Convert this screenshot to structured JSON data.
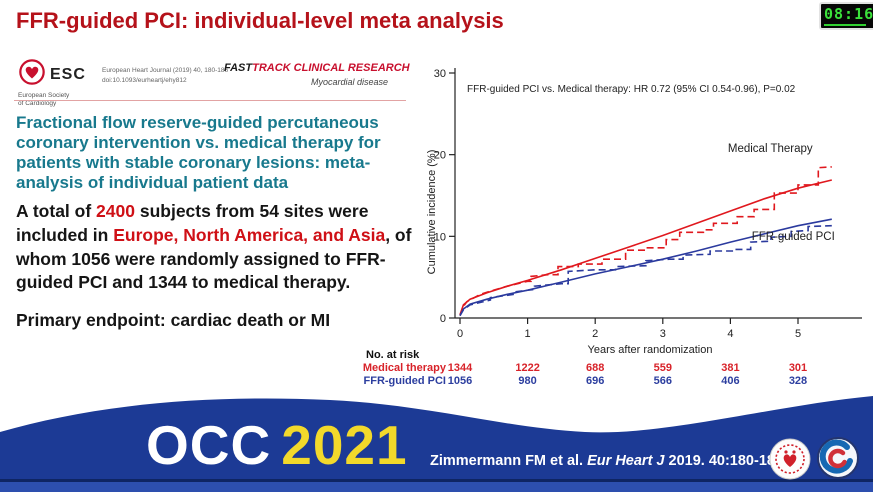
{
  "slide": {
    "title": "FFR-guided PCI: individual-level meta analysis",
    "clock_time": "08:16"
  },
  "journal_header": {
    "esc_acronym": "ESC",
    "esc_name_line1": "European Society",
    "esc_name_line2": "of Cardiology",
    "citation_line1": "European Heart Journal (2019) 40, 180-186",
    "citation_line2": "doi:10.1093/eurheartj/ehy812",
    "category_fast": "FAST",
    "category_track": "TRACK CLINICAL RESEARCH",
    "subcategory": "Myocardial disease"
  },
  "paper_title": "Fractional flow reserve-guided percutaneous coronary intervention vs. medical therapy for patients with stable coronary lesions: meta-analysis of individual patient data",
  "summary": {
    "seg1": "A total of ",
    "seg2_red": "2400",
    "seg3": " subjects from 54 sites were included in ",
    "seg4_red": "Europe, North America, and Asia",
    "seg5": ", of whom 1056 were randomly assigned to FFR-guided PCI and 1344 to medical therapy.",
    "endpoint": "Primary endpoint: cardiac death or MI"
  },
  "chart_data": {
    "type": "line",
    "annotation": "FFR-guided PCI vs. Medical therapy: HR 0.72 (95% CI 0.54-0.96), P=0.02",
    "xlabel": "Years after randomization",
    "ylabel": "Cumulative incidence (%)",
    "xlim": [
      0,
      5.5
    ],
    "ylim": [
      0,
      30
    ],
    "xticks": [
      0,
      1,
      2,
      3,
      4,
      5
    ],
    "yticks": [
      0,
      10,
      20,
      30
    ],
    "grid": false,
    "legend_position": "labels-on-chart",
    "series": [
      {
        "name": "Medical Therapy (model)",
        "color": "#e0181e",
        "style": "solid",
        "x": [
          0,
          0.05,
          0.15,
          0.4,
          0.7,
          1.0,
          1.5,
          2.0,
          2.5,
          3.0,
          3.5,
          4.0,
          4.5,
          5.0,
          5.5
        ],
        "y": [
          0.4,
          1.6,
          2.3,
          3.1,
          3.9,
          4.6,
          5.9,
          7.3,
          8.7,
          10.1,
          11.6,
          13.1,
          14.6,
          15.9,
          16.9
        ]
      },
      {
        "name": "Medical Therapy (KM)",
        "color": "#e0181e",
        "style": "dashed",
        "x": [
          0,
          0.04,
          0.1,
          0.3,
          0.5,
          0.7,
          0.9,
          1.0,
          1.05,
          1.05,
          1.3,
          1.45,
          1.45,
          1.75,
          1.75,
          2.1,
          2.1,
          2.45,
          2.45,
          2.75,
          2.75,
          3.05,
          3.05,
          3.25,
          3.25,
          3.6,
          3.6,
          3.75,
          3.75,
          4.1,
          4.1,
          4.35,
          4.35,
          4.65,
          4.65,
          5.0,
          5.0,
          5.3,
          5.3,
          5.5
        ],
        "y": [
          0.3,
          1.3,
          2.0,
          2.9,
          3.4,
          3.9,
          4.3,
          4.5,
          4.5,
          5.1,
          5.3,
          5.3,
          6.3,
          6.3,
          6.6,
          6.6,
          7.2,
          7.2,
          8.3,
          8.3,
          8.6,
          8.6,
          9.6,
          9.6,
          10.5,
          10.5,
          10.8,
          10.8,
          11.6,
          11.6,
          12.4,
          12.4,
          13.3,
          13.3,
          15.3,
          15.3,
          16.3,
          16.3,
          18.4,
          18.5
        ]
      },
      {
        "name": "FFR-guided PCI (model)",
        "color": "#2b3a9e",
        "style": "solid",
        "x": [
          0,
          0.05,
          0.15,
          0.4,
          0.7,
          1.0,
          1.5,
          2.0,
          2.5,
          3.0,
          3.5,
          4.0,
          4.5,
          5.0,
          5.5
        ],
        "y": [
          0.3,
          1.1,
          1.7,
          2.3,
          2.9,
          3.4,
          4.4,
          5.4,
          6.3,
          7.2,
          8.2,
          9.3,
          10.3,
          11.3,
          12.1
        ]
      },
      {
        "name": "FFR-guided PCI (KM)",
        "color": "#2b3a9e",
        "style": "dashed",
        "x": [
          0,
          0.05,
          0.15,
          0.45,
          0.45,
          0.8,
          0.8,
          1.1,
          1.1,
          1.5,
          1.6,
          1.6,
          2.0,
          2.3,
          2.3,
          2.75,
          2.75,
          3.1,
          3.3,
          3.3,
          3.7,
          3.7,
          4.05,
          4.05,
          4.3,
          4.3,
          4.6,
          4.6,
          4.9,
          4.9,
          5.15,
          5.15,
          5.5
        ],
        "y": [
          0.3,
          1.0,
          1.6,
          2.2,
          2.5,
          2.9,
          3.2,
          3.5,
          3.9,
          4.2,
          4.2,
          5.7,
          5.9,
          5.9,
          6.3,
          6.4,
          7.0,
          7.2,
          7.2,
          7.7,
          7.8,
          8.2,
          8.2,
          8.4,
          8.4,
          9.3,
          9.4,
          9.9,
          10.0,
          10.6,
          10.7,
          11.2,
          11.3
        ]
      }
    ],
    "curve_labels": [
      {
        "text": "Medical Therapy",
        "x": 4.59,
        "y": 20.3,
        "color": "#1a1a1a"
      },
      {
        "text": "FFR-guided PCI",
        "x": 4.93,
        "y": 9.55,
        "color": "#1a1a1a"
      }
    ],
    "risk_table": {
      "header": "No. at risk",
      "rows": [
        {
          "label": "Medical therapy",
          "color": "#d8232a",
          "values": [
            "1344",
            "1222",
            "688",
            "559",
            "381",
            "301"
          ]
        },
        {
          "label": "FFR-guided PCI",
          "color": "#2c3e9f",
          "values": [
            "1056",
            "980",
            "696",
            "566",
            "406",
            "328"
          ]
        }
      ]
    }
  },
  "footer": {
    "conference_name": "OCC",
    "conference_year": "2021",
    "citation_prefix": "Zimmermann FM et al. ",
    "citation_journal": "Eur Heart J",
    "citation_suffix": " 2019. 40:180-186."
  },
  "colors": {
    "title_red": "#b5121a",
    "highlight_red": "#cf1016",
    "paper_teal": "#18798d",
    "banner_blue": "#1c3a95",
    "banner_strip": "#2d4fae",
    "occ_yellow": "#f2d92b",
    "clock_green": "#3be23b",
    "series_red": "#e0181e",
    "series_blue": "#2b3a9e"
  }
}
